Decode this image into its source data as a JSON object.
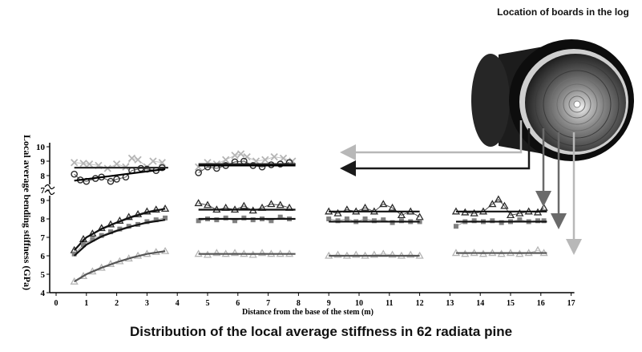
{
  "log_figure": {
    "title": "Location of boards in the log",
    "icon": "log-cross-section-icon"
  },
  "caption": "Distribution of the local average stiffness in 62 radiata pine",
  "chart_data": {
    "type": "scatter",
    "title": "Distribution of the local average stiffness in 62 radiata pine",
    "xlabel": "Distance from the base of the stem (m)",
    "ylabel": "Local average bending stiffness (GPa)",
    "xlim": [
      0,
      17
    ],
    "x_ticks": [
      "0",
      "1",
      "2",
      "3",
      "4",
      "5",
      "6",
      "7",
      "8",
      "9",
      "10",
      "11",
      "12",
      "13",
      "14",
      "15",
      "16",
      "17"
    ],
    "upper_panel": {
      "ylim": [
        7,
        10
      ],
      "y_ticks": [
        "7",
        "8",
        "9",
        "10"
      ]
    },
    "lower_panel": {
      "ylim": [
        4,
        9
      ],
      "y_ticks": [
        "4",
        "5",
        "6",
        "7",
        "8",
        "9"
      ]
    },
    "colors": {
      "dark": "#2b2b2b",
      "mid": "#808080",
      "light": "#b5b5b5",
      "arrow_light": "#b8b8b8",
      "arrow_mid": "#6a6a6a",
      "arrow_dark": "#1a1a1a"
    },
    "segments": [
      {
        "range": [
          0.6,
          3.7
        ],
        "upper": {
          "outer": {
            "marker": "x",
            "pts": [
              [
                0.6,
                8.9
              ],
              [
                0.9,
                8.85
              ],
              [
                1.1,
                8.8
              ],
              [
                1.4,
                8.7
              ],
              [
                1.7,
                8.5
              ],
              [
                2.0,
                8.8
              ],
              [
                2.3,
                8.6
              ],
              [
                2.5,
                9.2
              ],
              [
                2.7,
                9.1
              ],
              [
                3.0,
                8.6
              ],
              [
                3.2,
                9.0
              ],
              [
                3.5,
                8.9
              ]
            ],
            "fit_y": 8.55
          },
          "inner": {
            "marker": "o",
            "pts": [
              [
                0.6,
                8.1
              ],
              [
                0.8,
                7.7
              ],
              [
                1.0,
                7.6
              ],
              [
                1.3,
                7.8
              ],
              [
                1.5,
                7.9
              ],
              [
                1.8,
                7.6
              ],
              [
                2.0,
                7.75
              ],
              [
                2.3,
                7.9
              ],
              [
                2.5,
                8.35
              ],
              [
                2.8,
                8.5
              ],
              [
                3.0,
                8.45
              ],
              [
                3.3,
                8.35
              ],
              [
                3.5,
                8.55
              ]
            ],
            "fit": [
              [
                0.6,
                7.65
              ],
              [
                3.6,
                8.45
              ]
            ]
          }
        },
        "lower": [
          {
            "marker": "triangle",
            "color": "dark",
            "pts": [
              [
                0.6,
                6.3
              ],
              [
                0.9,
                6.9
              ],
              [
                1.2,
                7.2
              ],
              [
                1.5,
                7.5
              ],
              [
                1.8,
                7.7
              ],
              [
                2.1,
                7.9
              ],
              [
                2.4,
                8.1
              ],
              [
                2.7,
                8.25
              ],
              [
                3.0,
                8.4
              ],
              [
                3.3,
                8.5
              ],
              [
                3.6,
                8.55
              ]
            ],
            "fit": [
              [
                0.6,
                6.3
              ],
              [
                1.0,
                7.0
              ],
              [
                1.5,
                7.45
              ],
              [
                2.0,
                7.8
              ],
              [
                2.5,
                8.1
              ],
              [
                3.0,
                8.35
              ],
              [
                3.6,
                8.55
              ]
            ]
          },
          {
            "marker": "square",
            "color": "mid",
            "pts": [
              [
                0.6,
                6.1
              ],
              [
                0.9,
                6.6
              ],
              [
                1.2,
                6.9
              ],
              [
                1.5,
                7.1
              ],
              [
                1.8,
                7.3
              ],
              [
                2.1,
                7.45
              ],
              [
                2.4,
                7.6
              ],
              [
                2.7,
                7.7
              ],
              [
                3.0,
                7.85
              ],
              [
                3.3,
                7.95
              ],
              [
                3.6,
                8.05
              ]
            ],
            "fit": [
              [
                0.6,
                6.0
              ],
              [
                1.0,
                6.6
              ],
              [
                1.5,
                7.05
              ],
              [
                2.0,
                7.35
              ],
              [
                2.5,
                7.6
              ],
              [
                3.0,
                7.8
              ],
              [
                3.6,
                7.95
              ]
            ]
          },
          {
            "marker": "triangle",
            "color": "light",
            "pts": [
              [
                0.6,
                4.6
              ],
              [
                0.9,
                4.9
              ],
              [
                1.2,
                5.15
              ],
              [
                1.5,
                5.35
              ],
              [
                1.8,
                5.55
              ],
              [
                2.1,
                5.7
              ],
              [
                2.4,
                5.85
              ],
              [
                2.7,
                6.0
              ],
              [
                3.0,
                6.1
              ],
              [
                3.3,
                6.2
              ],
              [
                3.6,
                6.25
              ]
            ],
            "fit": [
              [
                0.6,
                4.6
              ],
              [
                1.0,
                5.0
              ],
              [
                1.5,
                5.35
              ],
              [
                2.0,
                5.65
              ],
              [
                2.5,
                5.9
              ],
              [
                3.0,
                6.1
              ],
              [
                3.6,
                6.25
              ]
            ]
          }
        ]
      },
      {
        "range": [
          4.7,
          7.9
        ],
        "upper": {
          "outer": {
            "marker": "x",
            "pts": [
              [
                4.7,
                8.6
              ],
              [
                5.0,
                8.9
              ],
              [
                5.3,
                8.8
              ],
              [
                5.6,
                9.1
              ],
              [
                5.9,
                9.4
              ],
              [
                6.1,
                9.5
              ],
              [
                6.3,
                9.3
              ],
              [
                6.6,
                9.0
              ],
              [
                6.9,
                9.1
              ],
              [
                7.2,
                9.3
              ],
              [
                7.5,
                9.2
              ],
              [
                7.8,
                9.0
              ]
            ],
            "fit_y": 8.8
          },
          "inner": {
            "marker": "o",
            "pts": [
              [
                4.7,
                8.2
              ],
              [
                5.0,
                8.6
              ],
              [
                5.3,
                8.5
              ],
              [
                5.6,
                8.7
              ],
              [
                5.9,
                8.95
              ],
              [
                6.2,
                9.0
              ],
              [
                6.5,
                8.7
              ],
              [
                6.8,
                8.6
              ],
              [
                7.1,
                8.75
              ],
              [
                7.4,
                8.8
              ],
              [
                7.7,
                8.9
              ]
            ],
            "fit_y": 8.7
          }
        },
        "lower": [
          {
            "marker": "triangle",
            "color": "dark",
            "pts": [
              [
                4.7,
                8.85
              ],
              [
                5.0,
                8.75
              ],
              [
                5.3,
                8.5
              ],
              [
                5.6,
                8.6
              ],
              [
                5.9,
                8.5
              ],
              [
                6.2,
                8.7
              ],
              [
                6.5,
                8.45
              ],
              [
                6.8,
                8.6
              ],
              [
                7.1,
                8.8
              ],
              [
                7.4,
                8.75
              ],
              [
                7.7,
                8.6
              ]
            ],
            "fit_y": 8.5
          },
          {
            "marker": "square",
            "color": "mid",
            "pts": [
              [
                4.7,
                7.9
              ],
              [
                5.0,
                8.0
              ],
              [
                5.3,
                7.95
              ],
              [
                5.6,
                8.05
              ],
              [
                5.9,
                7.9
              ],
              [
                6.2,
                8.05
              ],
              [
                6.5,
                7.95
              ],
              [
                6.8,
                8.0
              ],
              [
                7.1,
                7.9
              ],
              [
                7.4,
                8.1
              ],
              [
                7.7,
                8.0
              ]
            ],
            "fit_y": 8.0
          },
          {
            "marker": "triangle",
            "color": "light",
            "pts": [
              [
                4.7,
                6.1
              ],
              [
                5.0,
                6.05
              ],
              [
                5.3,
                6.15
              ],
              [
                5.6,
                6.1
              ],
              [
                5.9,
                6.15
              ],
              [
                6.2,
                6.1
              ],
              [
                6.5,
                6.05
              ],
              [
                6.8,
                6.15
              ],
              [
                7.1,
                6.1
              ],
              [
                7.4,
                6.1
              ],
              [
                7.7,
                6.1
              ]
            ],
            "fit_y": 6.1
          }
        ]
      },
      {
        "range": [
          9.0,
          12.0
        ],
        "lower": [
          {
            "marker": "triangle",
            "color": "dark",
            "pts": [
              [
                9.0,
                8.4
              ],
              [
                9.3,
                8.3
              ],
              [
                9.6,
                8.5
              ],
              [
                9.9,
                8.4
              ],
              [
                10.2,
                8.6
              ],
              [
                10.5,
                8.4
              ],
              [
                10.8,
                8.8
              ],
              [
                11.1,
                8.6
              ],
              [
                11.4,
                8.2
              ],
              [
                11.7,
                8.4
              ],
              [
                12.0,
                8.1
              ]
            ],
            "fit_y": 8.4
          },
          {
            "marker": "square",
            "color": "mid",
            "pts": [
              [
                9.0,
                8.0
              ],
              [
                9.3,
                7.9
              ],
              [
                9.6,
                8.0
              ],
              [
                9.9,
                7.85
              ],
              [
                10.2,
                8.0
              ],
              [
                10.5,
                7.9
              ],
              [
                10.8,
                7.95
              ],
              [
                11.1,
                7.8
              ],
              [
                11.4,
                7.9
              ],
              [
                11.7,
                7.85
              ],
              [
                12.0,
                7.85
              ]
            ],
            "fit_y": 7.85
          },
          {
            "marker": "triangle",
            "color": "light",
            "pts": [
              [
                9.0,
                6.0
              ],
              [
                9.3,
                6.05
              ],
              [
                9.6,
                6.0
              ],
              [
                9.9,
                6.05
              ],
              [
                10.2,
                6.0
              ],
              [
                10.5,
                6.05
              ],
              [
                10.8,
                6.1
              ],
              [
                11.1,
                6.05
              ],
              [
                11.4,
                6.0
              ],
              [
                11.7,
                6.05
              ],
              [
                12.0,
                6.0
              ]
            ],
            "fit_y": 6.0
          }
        ]
      },
      {
        "range": [
          13.2,
          16.2
        ],
        "lower": [
          {
            "marker": "triangle",
            "color": "dark",
            "pts": [
              [
                13.2,
                8.4
              ],
              [
                13.5,
                8.35
              ],
              [
                13.8,
                8.3
              ],
              [
                14.1,
                8.4
              ],
              [
                14.4,
                8.8
              ],
              [
                14.6,
                9.05
              ],
              [
                14.8,
                8.7
              ],
              [
                15.0,
                8.2
              ],
              [
                15.3,
                8.3
              ],
              [
                15.6,
                8.4
              ],
              [
                15.9,
                8.35
              ],
              [
                16.1,
                8.6
              ]
            ],
            "fit_y": 8.4
          },
          {
            "marker": "square",
            "color": "mid",
            "pts": [
              [
                13.2,
                7.6
              ],
              [
                13.5,
                7.85
              ],
              [
                13.8,
                7.9
              ],
              [
                14.1,
                7.85
              ],
              [
                14.4,
                7.9
              ],
              [
                14.7,
                7.8
              ],
              [
                15.0,
                7.85
              ],
              [
                15.3,
                7.95
              ],
              [
                15.6,
                7.85
              ],
              [
                15.9,
                7.9
              ],
              [
                16.1,
                7.9
              ]
            ],
            "fit_y": 7.85
          },
          {
            "marker": "triangle",
            "color": "light",
            "pts": [
              [
                13.2,
                6.15
              ],
              [
                13.5,
                6.1
              ],
              [
                13.8,
                6.15
              ],
              [
                14.1,
                6.1
              ],
              [
                14.4,
                6.15
              ],
              [
                14.7,
                6.1
              ],
              [
                15.0,
                6.15
              ],
              [
                15.3,
                6.1
              ],
              [
                15.6,
                6.15
              ],
              [
                15.9,
                6.3
              ],
              [
                16.1,
                6.15
              ]
            ],
            "fit_y": 6.15
          }
        ]
      }
    ]
  }
}
